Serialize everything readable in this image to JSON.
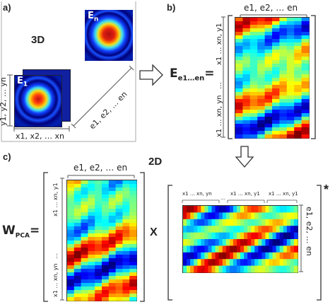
{
  "panels": {
    "a": {
      "label": "a)",
      "title": "3D",
      "image_label_front": "E",
      "image_label_front_sub": "1",
      "image_label_back": "E",
      "image_label_back_sub": "n",
      "axis_y": "y1, y2, … yn",
      "axis_x": "x1, x2, … xn",
      "axis_e": "e1, e2, … en"
    },
    "b": {
      "label": "b)",
      "matrix_symbol": "E",
      "matrix_subscript": "e1…en",
      "equals": "=",
      "top_axis": "e1, e2, … en",
      "side_axis_upper": "x1 … xn, y1",
      "side_axis_middle": "…",
      "side_axis_lower": "x1 … xn, yn"
    },
    "c": {
      "label": "c)",
      "title": "2D",
      "matrix_symbol": "W",
      "matrix_subscript": "PCA",
      "equals": "=",
      "times": "X",
      "conjugate": "*",
      "left_top_axis": "e1, e2, … en",
      "left_side_axis_upper": "x1 … xn, y1",
      "left_side_axis_middle": "…",
      "left_side_axis_lower": "x1 … xn, yn",
      "right_top_axis_left": "x1 … xn, yn",
      "right_top_axis_middle": "…",
      "right_top_axis_right": "x1 … xn, y1",
      "right_top_axis_far_right": "x1 … xn, y1",
      "right_side_axis": "e1, e2, … en"
    }
  },
  "colors": {
    "jet_dark_blue": "#00008b",
    "jet_blue": "#0060ff",
    "jet_cyan": "#20e0f0",
    "jet_yellow": "#f0e020",
    "jet_orange": "#ff8000",
    "jet_red": "#d01010"
  }
}
